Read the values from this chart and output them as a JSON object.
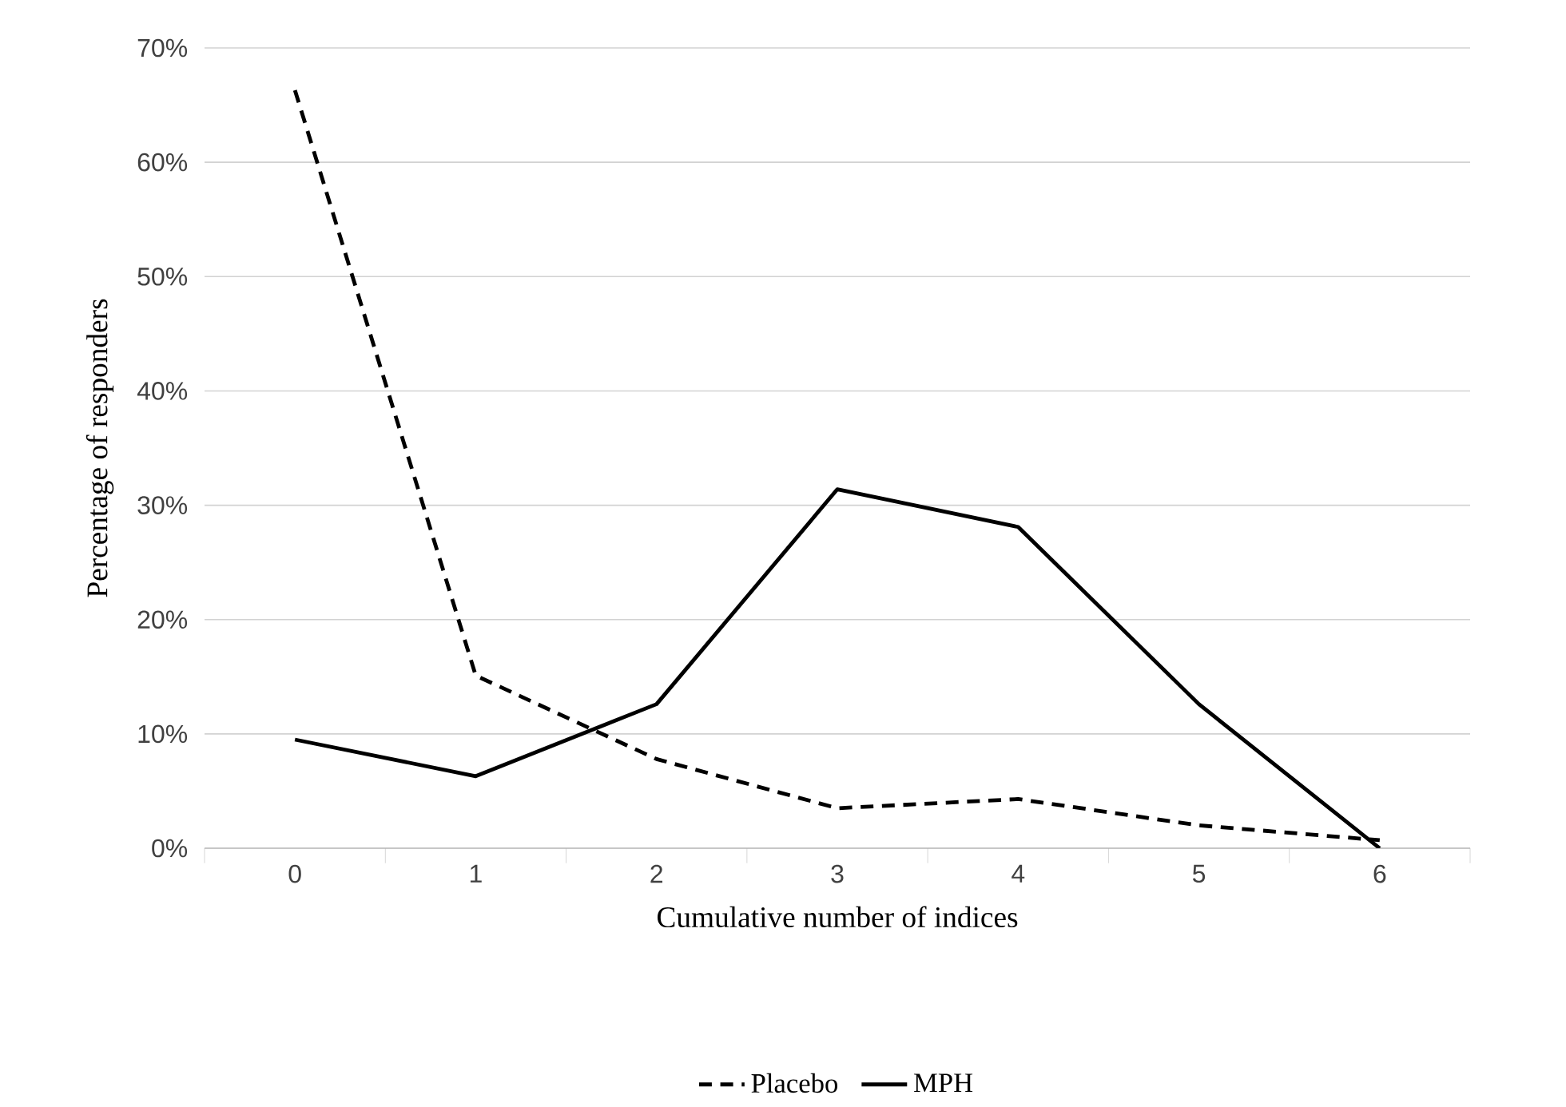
{
  "chart_data": {
    "type": "line",
    "xlabel": "Cumulative number of indices",
    "ylabel": "Percentage of responders",
    "categories": [
      "0",
      "1",
      "2",
      "3",
      "4",
      "5",
      "6"
    ],
    "ylim": [
      0,
      70
    ],
    "yticks": [
      {
        "value": 0,
        "label": "0%"
      },
      {
        "value": 10,
        "label": "10%"
      },
      {
        "value": 20,
        "label": "20%"
      },
      {
        "value": 30,
        "label": "30%"
      },
      {
        "value": 40,
        "label": "40%"
      },
      {
        "value": 50,
        "label": "50%"
      },
      {
        "value": 60,
        "label": "60%"
      },
      {
        "value": 70,
        "label": "70%"
      }
    ],
    "grid": "y",
    "legend": "bottom",
    "series": [
      {
        "name": "Placebo",
        "color": "#000000",
        "line_style": "dashed",
        "values": [
          66.3,
          15.1,
          7.8,
          3.5,
          4.3,
          2.0,
          0.7
        ]
      },
      {
        "name": "MPH",
        "color": "#000000",
        "line_style": "solid",
        "values": [
          9.5,
          6.3,
          12.6,
          31.4,
          28.1,
          12.6,
          0
        ]
      }
    ]
  }
}
